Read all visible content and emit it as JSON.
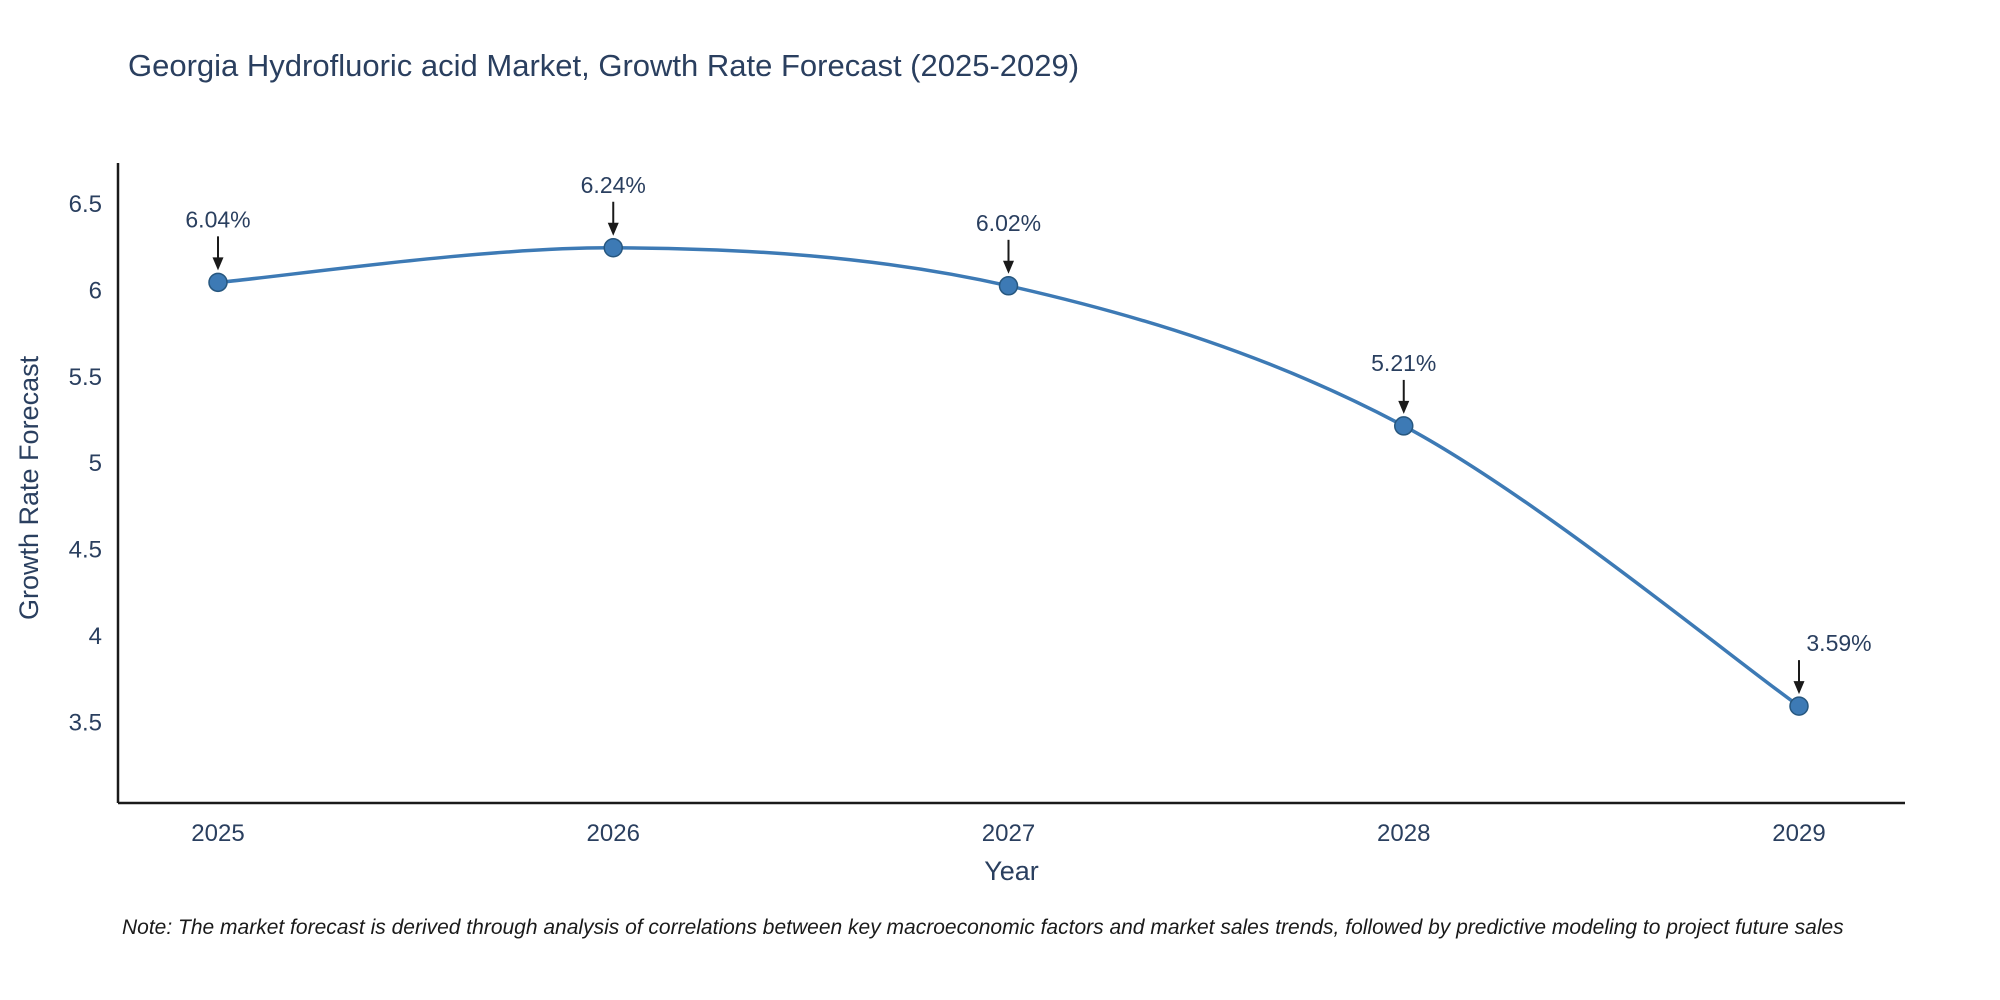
{
  "page": {
    "note": "Note: The market forecast is derived through analysis of correlations between key macroeconomic factors and market sales trends, followed by predictive modeling to project future sales"
  },
  "chart_data": {
    "type": "line",
    "title": "Georgia Hydrofluoric acid Market, Growth Rate Forecast (2025-2029)",
    "x": [
      2025,
      2026,
      2027,
      2028,
      2029
    ],
    "series": [
      {
        "name": "Growth Rate Forecast",
        "values": [
          6.04,
          6.24,
          6.02,
          5.21,
          3.59
        ]
      }
    ],
    "point_labels": [
      "6.04%",
      "6.24%",
      "6.02%",
      "5.21%",
      "3.59%"
    ],
    "xlabel": "Year",
    "ylabel": "Growth Rate Forecast",
    "yticks": [
      3.5,
      4,
      4.5,
      5,
      5.5,
      6,
      6.5
    ],
    "ylim": [
      3.03,
      6.73
    ],
    "line_shape": "spline",
    "grid": false,
    "legend": "none",
    "colors": {
      "line": "#3d7ab5",
      "marker": "#3d7ab5",
      "marker_edge": "#27577f",
      "text": "#2a3f5f",
      "axis": "#1a1a1a"
    }
  }
}
